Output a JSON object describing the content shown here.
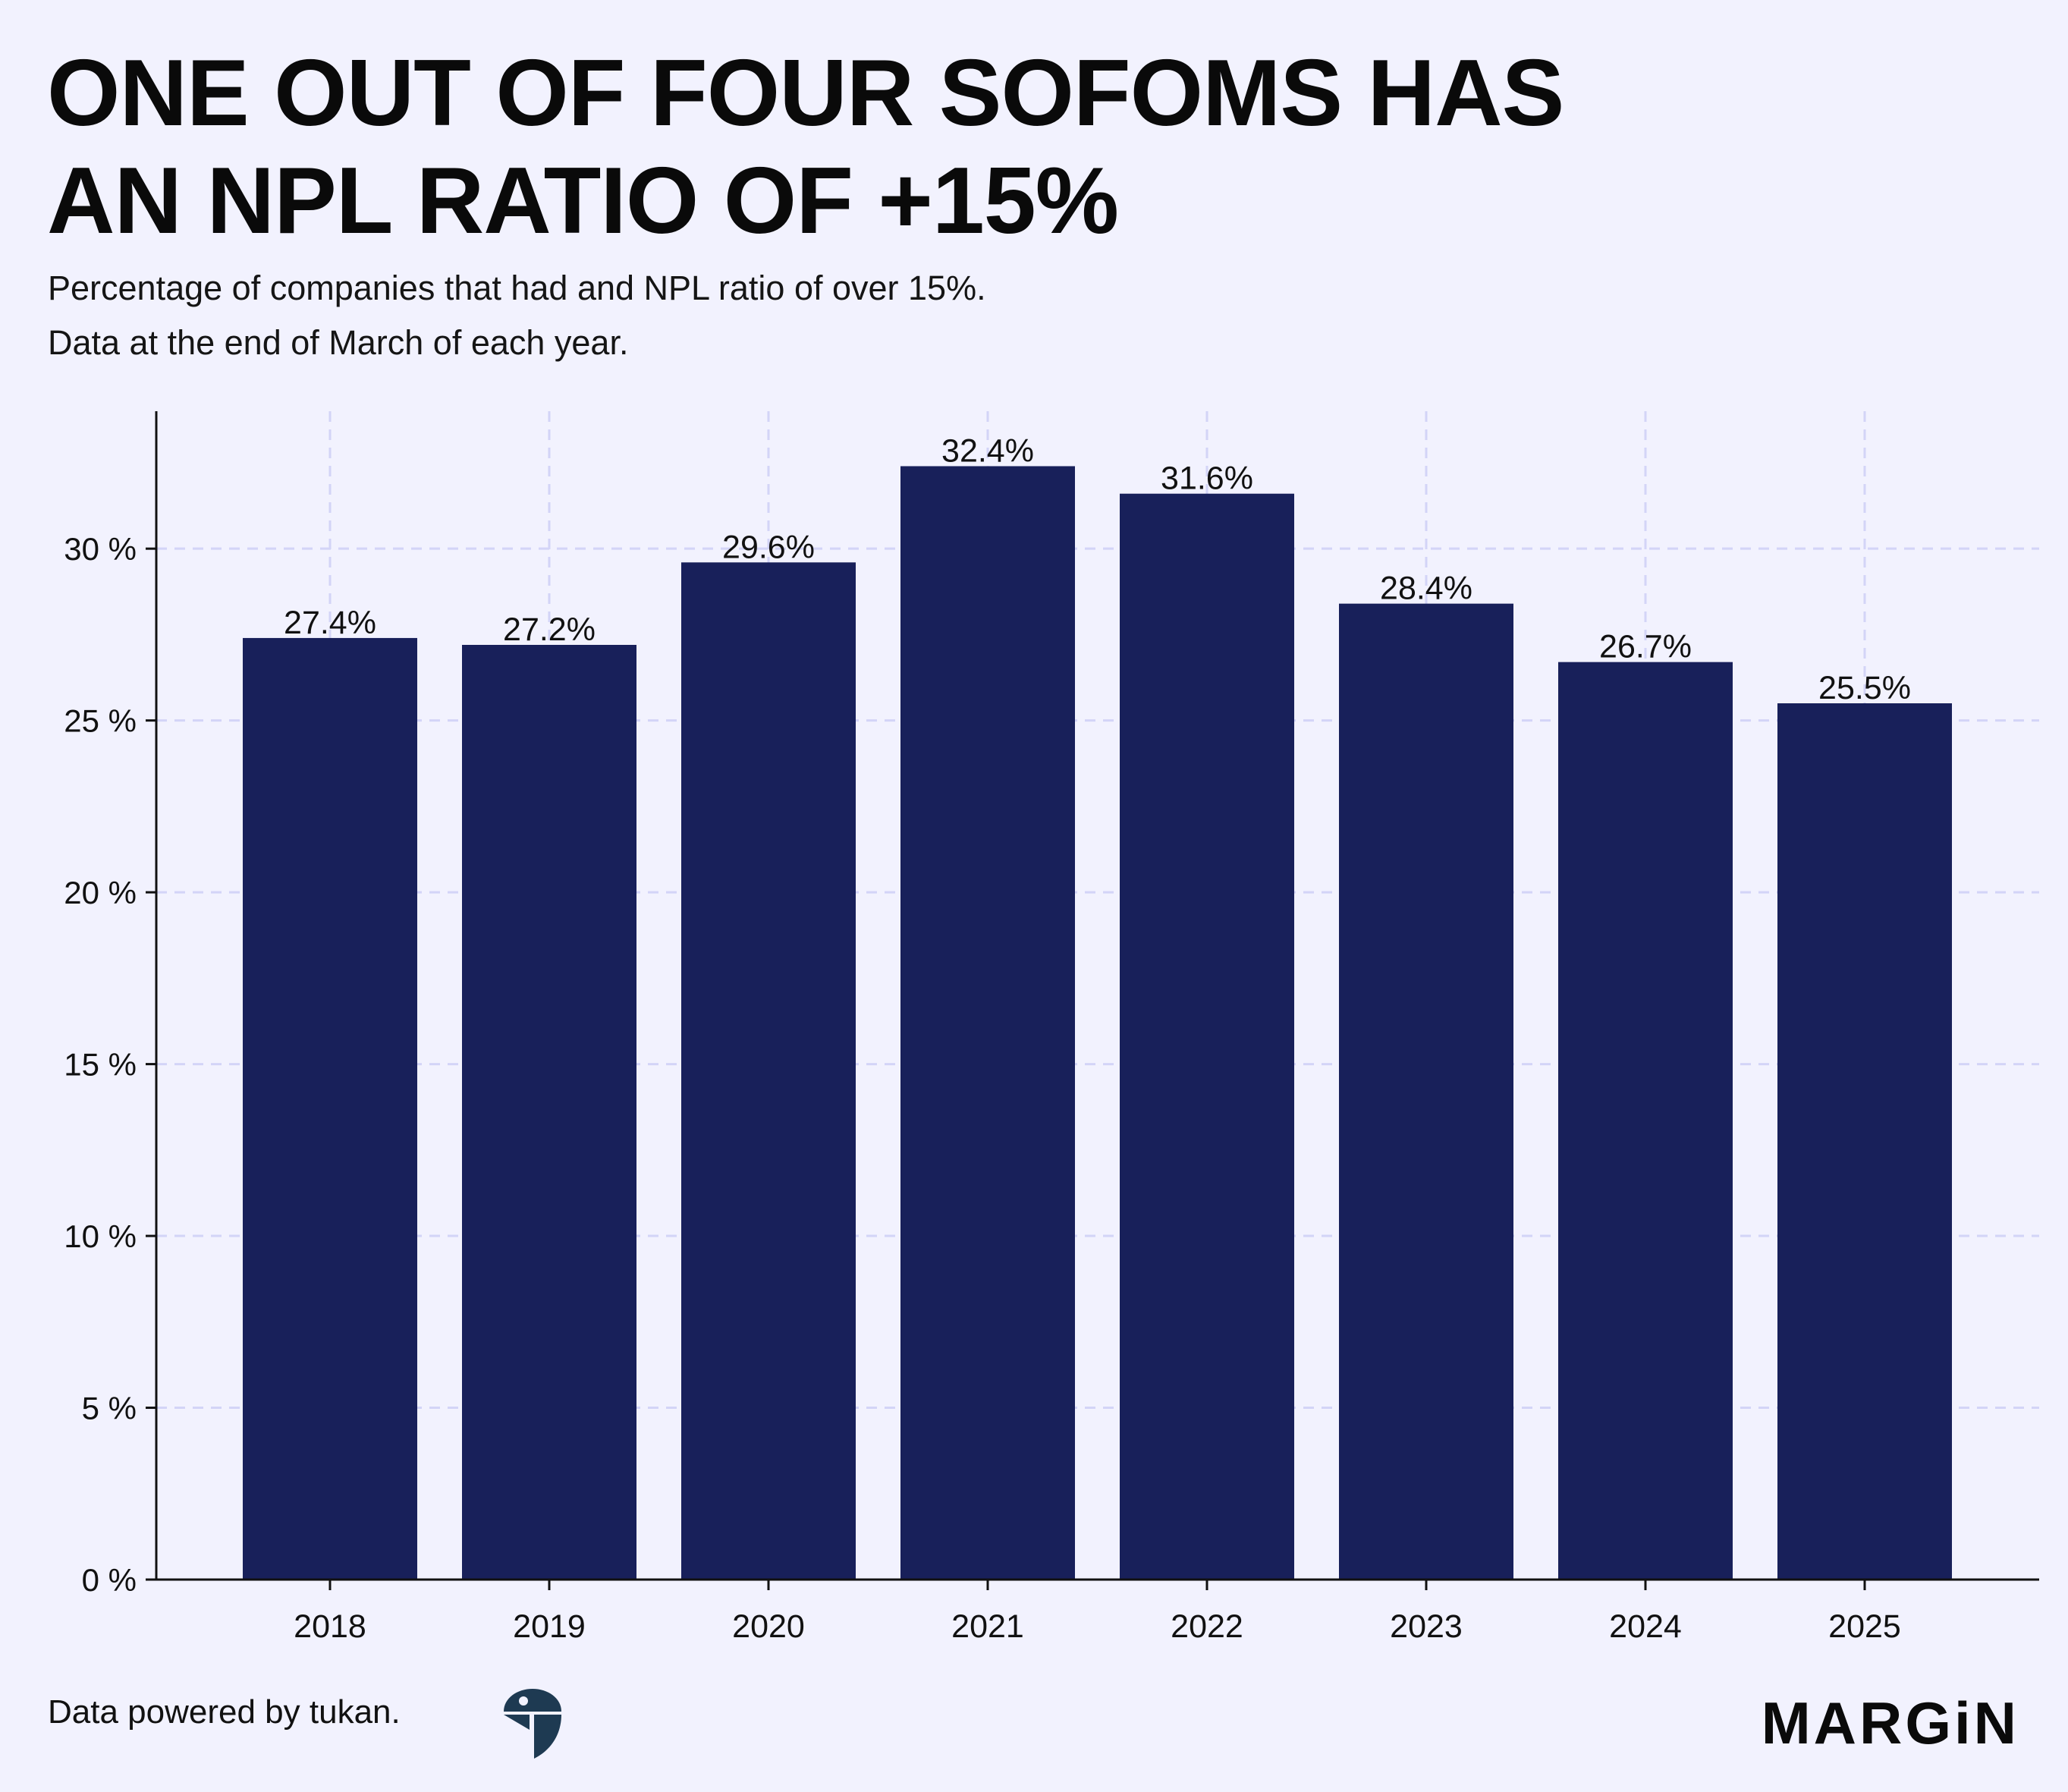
{
  "header": {
    "title_line1": "ONE OUT OF FOUR SOFOMS HAS",
    "title_line2": "AN NPL RATIO OF +15%",
    "subtitle_line1": "Percentage of companies that had and NPL ratio of over 15%.",
    "subtitle_line2": "Data at the end of March of each year."
  },
  "footer": {
    "source": "Data powered by tukan.",
    "source_icon": "tukan-bird-icon",
    "brand": "MARGiN"
  },
  "colors": {
    "background": "#f2f2fe",
    "bar": "#18205a",
    "grid": "#d3d4f7",
    "axis": "#111111",
    "logo": "#1e3a52"
  },
  "chart_data": {
    "type": "bar",
    "title": "ONE OUT OF FOUR SOFOMS HAS AN NPL RATIO OF +15%",
    "subtitle": "Percentage of companies that had and NPL ratio of over 15%. Data at the end of March of each year.",
    "xlabel": "",
    "ylabel": "",
    "categories": [
      "2018",
      "2019",
      "2020",
      "2021",
      "2022",
      "2023",
      "2024",
      "2025"
    ],
    "values": [
      27.4,
      27.2,
      29.6,
      32.4,
      31.6,
      28.4,
      26.7,
      25.5
    ],
    "data_labels": [
      "27.4%",
      "27.2%",
      "29.6%",
      "32.4%",
      "31.6%",
      "28.4%",
      "26.7%",
      "25.5%"
    ],
    "ylim": [
      0,
      34
    ],
    "yticks": [
      0,
      5,
      10,
      15,
      20,
      25,
      30
    ],
    "ytick_labels": [
      "0 %",
      "5 %",
      "10 %",
      "15 %",
      "20 %",
      "25 %",
      "30 %"
    ],
    "grid": true,
    "grid_style": "dashed",
    "legend": "none"
  }
}
